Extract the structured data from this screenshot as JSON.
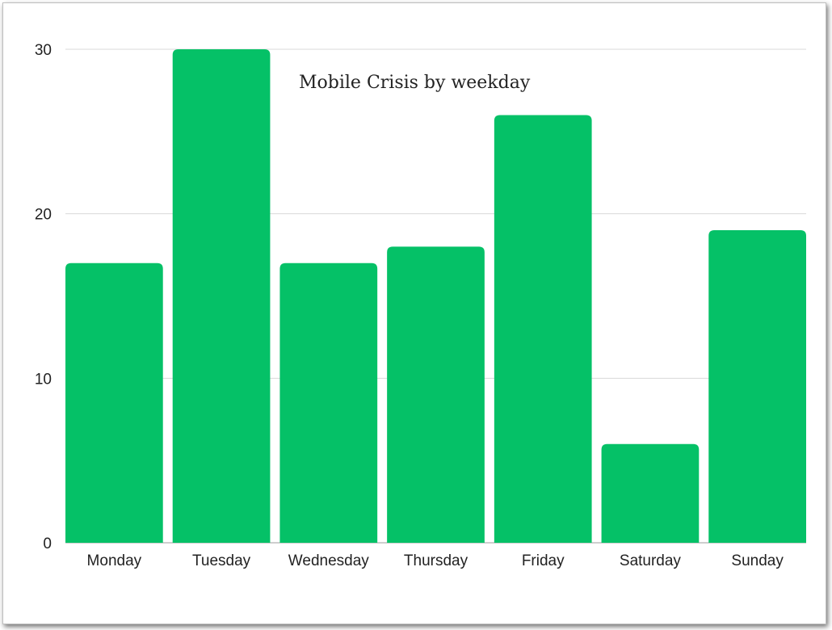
{
  "chart_data": {
    "type": "bar",
    "title": "Mobile Crisis by weekday",
    "xlabel": "",
    "ylabel": "",
    "categories": [
      "Monday",
      "Tuesday",
      "Wednesday",
      "Thursday",
      "Friday",
      "Saturday",
      "Sunday"
    ],
    "values": [
      17,
      30,
      17,
      18,
      26,
      6,
      19
    ],
    "ylim": [
      0,
      30
    ],
    "yticks": [
      0,
      10,
      20,
      30
    ],
    "grid": true,
    "legend": "none",
    "bar_color": "#05c167",
    "grid_color": "#d9d9d9"
  }
}
